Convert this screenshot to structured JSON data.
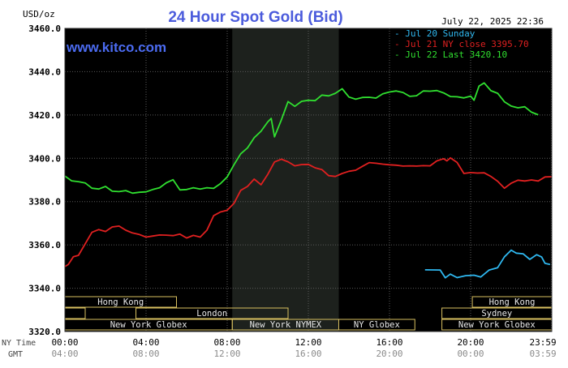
{
  "chart_data": {
    "type": "line",
    "title": "24 Hour Spot Gold (Bid)",
    "unit_label": "USD/oz",
    "timestamp": "July 22, 2025 22:36",
    "watermark": "www.kitco.com",
    "ylim": [
      3320,
      3460
    ],
    "y_ticks": [
      3320,
      3340,
      3360,
      3380,
      3400,
      3420,
      3440,
      3460
    ],
    "y_tick_labels": [
      "3320.0",
      "3340.0",
      "3360.0",
      "3380.0",
      "3400.0",
      "3420.0",
      "3440.0",
      "3460.0"
    ],
    "xlim": [
      0,
      1440
    ],
    "x_ticks": [
      0,
      240,
      480,
      720,
      960,
      1200,
      1439
    ],
    "x_tick_labels_ny": [
      "00:00",
      "04:00",
      "08:00",
      "12:00",
      "16:00",
      "20:00",
      "23:59"
    ],
    "x_tick_labels_gmt": [
      "04:00",
      "08:00",
      "12:00",
      "16:00",
      "20:00",
      "00:00",
      "03:59"
    ],
    "ny_time_label": "NY Time",
    "gmt_label": "GMT",
    "grid": true,
    "legend": [
      {
        "label": "Jul 20 Sunday",
        "color": "#2fb8f0"
      },
      {
        "label": "Jul 21 NY close 3395.70",
        "color": "#e02020"
      },
      {
        "label": "Jul 22 Last 3420.10",
        "color": "#30e030"
      }
    ],
    "shaded_region": {
      "x_start": 495,
      "x_end": 810
    },
    "sessions": [
      {
        "row": 0,
        "label": "Hong Kong",
        "x_start": 0,
        "x_end": 330
      },
      {
        "row": 0,
        "label": "Hong Kong",
        "x_start": 1205,
        "x_end": 1440
      },
      {
        "row": 1,
        "label": "",
        "x_start": 0,
        "x_end": 60
      },
      {
        "row": 1,
        "label": "London",
        "x_start": 210,
        "x_end": 660
      },
      {
        "row": 1,
        "label": "Sydney",
        "x_start": 1115,
        "x_end": 1440
      },
      {
        "row": 2,
        "label": "New York Globex",
        "x_start": 0,
        "x_end": 495
      },
      {
        "row": 2,
        "label": "New York NYMEX",
        "x_start": 495,
        "x_end": 810
      },
      {
        "row": 2,
        "label": "NY Globex",
        "x_start": 810,
        "x_end": 1035
      },
      {
        "row": 2,
        "label": "New York Globex",
        "x_start": 1115,
        "x_end": 1440
      }
    ],
    "series": [
      {
        "name": "Jul 20 Sunday",
        "color": "#2fb8f0",
        "x": [
          1065,
          1110,
          1125,
          1140,
          1160,
          1185,
          1210,
          1230,
          1255,
          1280,
          1300,
          1320,
          1335,
          1355,
          1375,
          1395,
          1410,
          1420,
          1435
        ],
        "y": [
          3348.5,
          3348.4,
          3344.8,
          3346.5,
          3344.9,
          3345.8,
          3346.0,
          3345.2,
          3348.4,
          3349.5,
          3354.5,
          3357.6,
          3356.2,
          3355.9,
          3353.3,
          3355.5,
          3354.4,
          3351.5,
          3351.0
        ]
      },
      {
        "name": "Jul 21 NY close 3395.70",
        "color": "#e02020",
        "x": [
          0,
          10,
          25,
          40,
          60,
          80,
          100,
          120,
          140,
          160,
          180,
          200,
          220,
          240,
          260,
          280,
          300,
          320,
          340,
          360,
          380,
          400,
          420,
          440,
          460,
          480,
          500,
          520,
          540,
          560,
          580,
          600,
          620,
          640,
          660,
          680,
          700,
          720,
          740,
          760,
          780,
          800,
          820,
          840,
          860,
          880,
          900,
          920,
          940,
          960,
          980,
          1000,
          1020,
          1040,
          1060,
          1080,
          1100,
          1120,
          1130,
          1140,
          1160,
          1180,
          1200,
          1220,
          1240,
          1260,
          1280,
          1300,
          1320,
          1340,
          1360,
          1380,
          1400,
          1420,
          1440
        ],
        "y": [
          3350.0,
          3351.0,
          3354.5,
          3355.2,
          3360.5,
          3365.8,
          3367.1,
          3366.2,
          3368.3,
          3368.7,
          3366.8,
          3365.5,
          3364.8,
          3363.6,
          3364.1,
          3364.6,
          3364.5,
          3364.3,
          3365.0,
          3363.2,
          3364.4,
          3363.6,
          3366.8,
          3373.5,
          3375.2,
          3376.0,
          3379.2,
          3385.2,
          3387.0,
          3390.4,
          3387.8,
          3392.6,
          3398.3,
          3399.6,
          3398.4,
          3396.5,
          3397.1,
          3397.2,
          3395.6,
          3394.8,
          3392.0,
          3391.6,
          3393.0,
          3394.0,
          3394.5,
          3396.3,
          3398.0,
          3397.7,
          3397.3,
          3397.0,
          3396.8,
          3396.4,
          3396.5,
          3396.4,
          3396.6,
          3396.5,
          3398.8,
          3399.8,
          3398.8,
          3400.2,
          3398.1,
          3393.0,
          3393.4,
          3393.2,
          3393.3,
          3391.6,
          3389.4,
          3386.2,
          3388.5,
          3389.9,
          3389.5,
          3390.0,
          3389.5,
          3391.4,
          3391.5
        ]
      },
      {
        "name": "Jul 22 Last 3420.10",
        "color": "#30e030",
        "x": [
          0,
          20,
          40,
          60,
          80,
          100,
          120,
          140,
          160,
          180,
          200,
          220,
          240,
          260,
          280,
          300,
          320,
          340,
          360,
          380,
          400,
          420,
          440,
          460,
          480,
          500,
          520,
          540,
          560,
          580,
          600,
          610,
          620,
          640,
          660,
          680,
          700,
          720,
          740,
          760,
          780,
          800,
          820,
          840,
          860,
          880,
          900,
          920,
          940,
          960,
          980,
          1000,
          1020,
          1040,
          1060,
          1080,
          1100,
          1120,
          1140,
          1160,
          1180,
          1200,
          1210,
          1225,
          1240,
          1260,
          1280,
          1300,
          1320,
          1340,
          1360,
          1380,
          1400
        ],
        "y": [
          3391.8,
          3389.6,
          3389.2,
          3388.6,
          3386.2,
          3385.8,
          3387.0,
          3384.8,
          3384.6,
          3385.1,
          3383.9,
          3384.3,
          3384.5,
          3385.6,
          3386.4,
          3388.7,
          3390.1,
          3385.4,
          3385.6,
          3386.4,
          3385.8,
          3386.4,
          3386.1,
          3388.3,
          3391.4,
          3397.0,
          3402.1,
          3404.8,
          3409.5,
          3412.5,
          3416.8,
          3418.4,
          3409.9,
          3417.7,
          3426.2,
          3424.0,
          3426.3,
          3426.8,
          3426.6,
          3429.2,
          3428.8,
          3430.0,
          3432.1,
          3428.3,
          3427.3,
          3428.1,
          3428.2,
          3427.8,
          3429.8,
          3430.6,
          3431.1,
          3430.4,
          3428.6,
          3428.9,
          3431.1,
          3431.0,
          3431.3,
          3430.2,
          3428.5,
          3428.4,
          3427.9,
          3428.7,
          3426.8,
          3433.4,
          3434.8,
          3431.2,
          3430.0,
          3426.1,
          3424.1,
          3423.3,
          3423.8,
          3421.3,
          3420.1
        ]
      }
    ]
  }
}
